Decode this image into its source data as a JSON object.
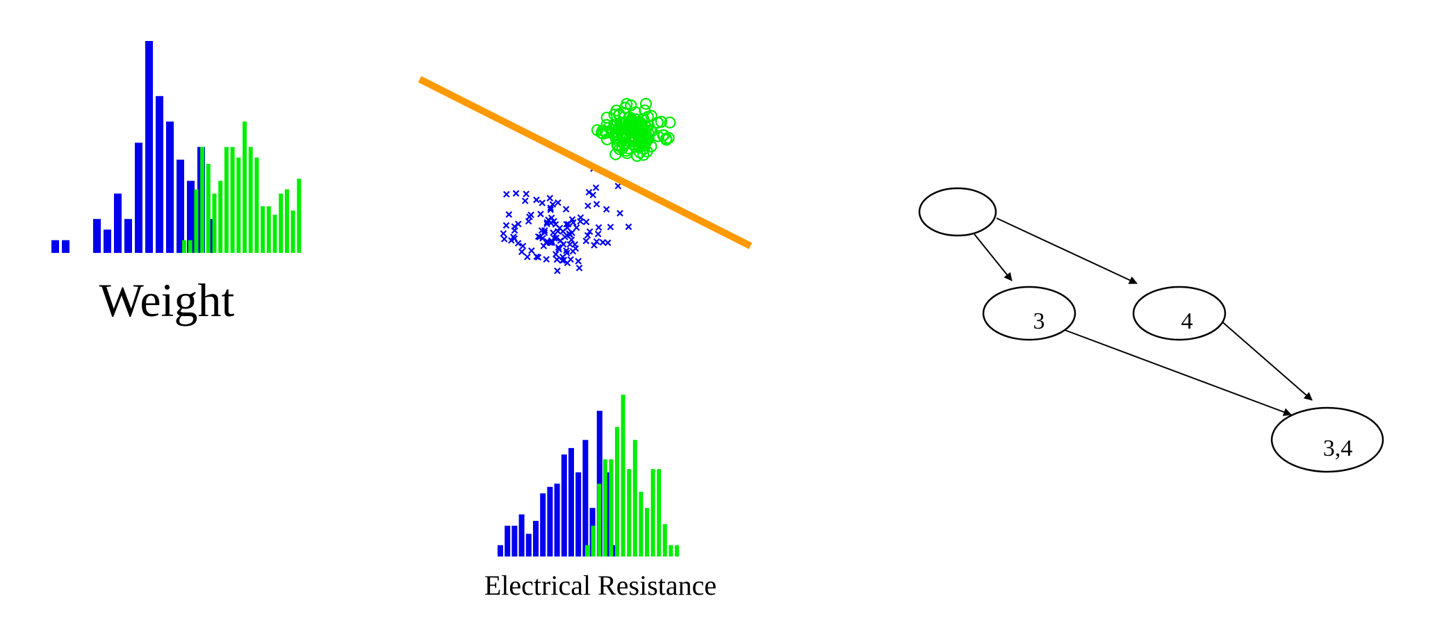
{
  "colors": {
    "class_a": "#0000ee",
    "class_b": "#00ee00",
    "separator": "#ff9900",
    "graph": "#000000"
  },
  "labels": {
    "weight": "Weight",
    "resistance": "Electrical Resistance"
  },
  "graph": {
    "nodes": [
      {
        "id": "root",
        "label": ""
      },
      {
        "id": "n3",
        "label": "3"
      },
      {
        "id": "n4",
        "label": "4"
      },
      {
        "id": "n34",
        "label": "3,4"
      }
    ],
    "edges": [
      {
        "from": "root",
        "to": "n3"
      },
      {
        "from": "root",
        "to": "n4"
      },
      {
        "from": "n3",
        "to": "n34"
      },
      {
        "from": "n4",
        "to": "n34"
      }
    ]
  },
  "chart_data": [
    {
      "type": "bar",
      "xlabel": "Weight",
      "series": [
        {
          "values": [
            0.06,
            0.06,
            0,
            0,
            0.16,
            0.11,
            0.28,
            0.16,
            0.52,
            1.0,
            0.74,
            0.62,
            0.44,
            0.34,
            0.5,
            0.16
          ]
        },
        {
          "values": [
            0.06,
            0.06,
            0.3,
            0.5,
            0.42,
            0.28,
            0.34,
            0.5,
            0.5,
            0.45,
            0.62,
            0.5,
            0.45,
            0.22,
            0.22,
            0.18,
            0.28,
            0.3,
            0.2,
            0.35
          ]
        }
      ]
    },
    {
      "type": "bar",
      "xlabel": "Electrical Resistance",
      "series": [
        {
          "values": [
            0.07,
            0.19,
            0.19,
            0.26,
            0.14,
            0.22,
            0.39,
            0.43,
            0.45,
            0.63,
            0.67,
            0.52,
            0.72,
            0.3,
            0.9,
            0.52,
            0.07
          ]
        },
        {
          "values": [
            0.07,
            0.19,
            0.45,
            0.6,
            0.6,
            0.8,
            1.0,
            0.54,
            0.72,
            0.4,
            0.3,
            0.54,
            0.54,
            0.2,
            0.07,
            0.07
          ]
        }
      ]
    },
    {
      "type": "scatter",
      "series": [
        {
          "marker": "x"
        },
        {
          "marker": "o"
        }
      ]
    }
  ]
}
